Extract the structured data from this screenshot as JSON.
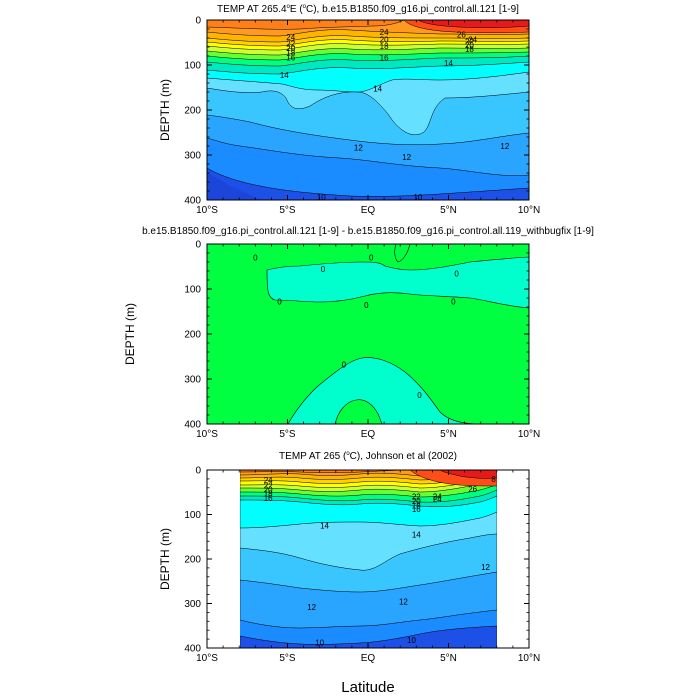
{
  "figure": {
    "xlabel": "Latitude"
  },
  "chart_data": [
    {
      "type": "heatmap",
      "title": "TEMP AT 265.4°E (°C), b.e15.B1850.f09_g16.pi_control.all.121 [1-9]",
      "title_parts": [
        "TEMP AT 265.4",
        "o",
        "E (",
        "o",
        "C), b.e15.B1850.f09_g16.pi_control.all.121 [1-9]"
      ],
      "ylabel": "DEPTH (m)",
      "xlim": [
        -10,
        10
      ],
      "ylim": [
        400,
        0
      ],
      "x_ticks": [
        -10,
        -5,
        0,
        5,
        10
      ],
      "x_tick_labels": [
        "10°S",
        "5°S",
        "EQ",
        "5°N",
        "10°N"
      ],
      "y_ticks": [
        0,
        100,
        200,
        300,
        400
      ],
      "y_tick_labels": [
        "0",
        "100",
        "200",
        "300",
        "400"
      ],
      "levels": [
        10,
        11,
        12,
        13,
        14,
        15,
        16,
        17,
        18,
        19,
        20,
        21,
        22,
        23,
        24,
        25,
        26
      ],
      "level_colors": [
        "#1c50e6",
        "#1a8cff",
        "#29a4ff",
        "#39c6ff",
        "#66e0ff",
        "#00ffff",
        "#00e8c0",
        "#00ff7f",
        "#66ff33",
        "#ccff33",
        "#ffff00",
        "#ffd200",
        "#ffb400",
        "#ff9a1f",
        "#ff7f1a",
        "#ff4d1a",
        "#e61a1a"
      ],
      "contour_labels": [
        {
          "text": "24",
          "x": -4.8,
          "y": 38
        },
        {
          "text": "22",
          "x": -4.8,
          "y": 52
        },
        {
          "text": "20",
          "x": -4.8,
          "y": 62
        },
        {
          "text": "18",
          "x": -4.8,
          "y": 72
        },
        {
          "text": "16",
          "x": -4.8,
          "y": 83
        },
        {
          "text": "14",
          "x": -5.2,
          "y": 122
        },
        {
          "text": "24",
          "x": 1.0,
          "y": 27
        },
        {
          "text": "20",
          "x": 1.0,
          "y": 43
        },
        {
          "text": "18",
          "x": 1.0,
          "y": 58
        },
        {
          "text": "16",
          "x": 1.0,
          "y": 83
        },
        {
          "text": "14",
          "x": 0.6,
          "y": 152
        },
        {
          "text": "26",
          "x": 5.8,
          "y": 32
        },
        {
          "text": "24",
          "x": 6.5,
          "y": 43
        },
        {
          "text": "22",
          "x": 6.3,
          "y": 48
        },
        {
          "text": "20",
          "x": 6.3,
          "y": 55
        },
        {
          "text": "18",
          "x": 6.3,
          "y": 64
        },
        {
          "text": "14",
          "x": 5.0,
          "y": 95
        },
        {
          "text": "12",
          "x": -0.6,
          "y": 283
        },
        {
          "text": "12",
          "x": 2.4,
          "y": 304
        },
        {
          "text": "12",
          "x": 8.5,
          "y": 280
        },
        {
          "text": "10",
          "x": -2.9,
          "y": 393
        },
        {
          "text": "10",
          "x": 3.1,
          "y": 393
        }
      ]
    },
    {
      "type": "heatmap",
      "title": "b.e15.B1850.f09_g16.pi_control.all.121 [1-9] - b.e15.B1850.f09_g16.pi_control.all.119_withbugfix [1-9]",
      "ylabel": "DEPTH (m)",
      "xlim": [
        -10,
        10
      ],
      "ylim": [
        400,
        0
      ],
      "x_ticks": [
        -10,
        -5,
        0,
        5,
        10
      ],
      "x_tick_labels": [
        "10°S",
        "5°S",
        "EQ",
        "5°N",
        "10°N"
      ],
      "y_ticks": [
        0,
        100,
        200,
        300,
        400
      ],
      "y_tick_labels": [
        "0",
        "100",
        "200",
        "300",
        "400"
      ],
      "background_color": "#00ff40",
      "region_color": "#00ffcc",
      "contour_labels": [
        {
          "text": "0",
          "x": -7.0,
          "y": 30
        },
        {
          "text": "0",
          "x": -2.8,
          "y": 55
        },
        {
          "text": "0",
          "x": 0.2,
          "y": 30
        },
        {
          "text": "0",
          "x": 5.5,
          "y": 65
        },
        {
          "text": "0",
          "x": -5.5,
          "y": 128
        },
        {
          "text": "0",
          "x": -0.1,
          "y": 135
        },
        {
          "text": "0",
          "x": 5.3,
          "y": 128
        },
        {
          "text": "0",
          "x": -1.5,
          "y": 268
        },
        {
          "text": "0",
          "x": 3.2,
          "y": 335
        }
      ]
    },
    {
      "type": "heatmap",
      "title": "TEMP AT 265 (°C), Johnson et al (2002)",
      "title_parts": [
        "TEMP AT 265 (",
        "o",
        "C), Johnson et al (2002)"
      ],
      "ylabel": "DEPTH (m)",
      "xlim": [
        -10,
        10
      ],
      "ylim": [
        400,
        0
      ],
      "x_ticks": [
        -10,
        -5,
        0,
        5,
        10
      ],
      "x_tick_labels": [
        "10°S",
        "5°S",
        "EQ",
        "5°N",
        "10°N"
      ],
      "y_ticks": [
        0,
        100,
        200,
        300,
        400
      ],
      "y_tick_labels": [
        "0",
        "100",
        "200",
        "300",
        "400"
      ],
      "data_xlim": [
        -8,
        8
      ],
      "contour_labels": [
        {
          "text": "24",
          "x": -6.2,
          "y": 22
        },
        {
          "text": "22",
          "x": -6.2,
          "y": 35
        },
        {
          "text": "20",
          "x": -6.2,
          "y": 44
        },
        {
          "text": "18",
          "x": -6.2,
          "y": 53
        },
        {
          "text": "16",
          "x": -6.2,
          "y": 63
        },
        {
          "text": "14",
          "x": -2.7,
          "y": 125
        },
        {
          "text": "24",
          "x": 4.3,
          "y": 65
        },
        {
          "text": "22",
          "x": 3.0,
          "y": 60
        },
        {
          "text": "20",
          "x": 3.0,
          "y": 70
        },
        {
          "text": "18",
          "x": 3.0,
          "y": 80
        },
        {
          "text": "16",
          "x": 3.0,
          "y": 88
        },
        {
          "text": "14",
          "x": 3.0,
          "y": 145
        },
        {
          "text": "24",
          "x": 4.3,
          "y": 60
        },
        {
          "text": "26",
          "x": 6.5,
          "y": 43
        },
        {
          "text": "8",
          "x": 7.8,
          "y": 20
        },
        {
          "text": "12",
          "x": 7.3,
          "y": 218
        },
        {
          "text": "12",
          "x": -3.5,
          "y": 308
        },
        {
          "text": "12",
          "x": 2.2,
          "y": 295
        },
        {
          "text": "10",
          "x": -3.0,
          "y": 388
        },
        {
          "text": "10",
          "x": 2.7,
          "y": 382
        }
      ]
    }
  ]
}
